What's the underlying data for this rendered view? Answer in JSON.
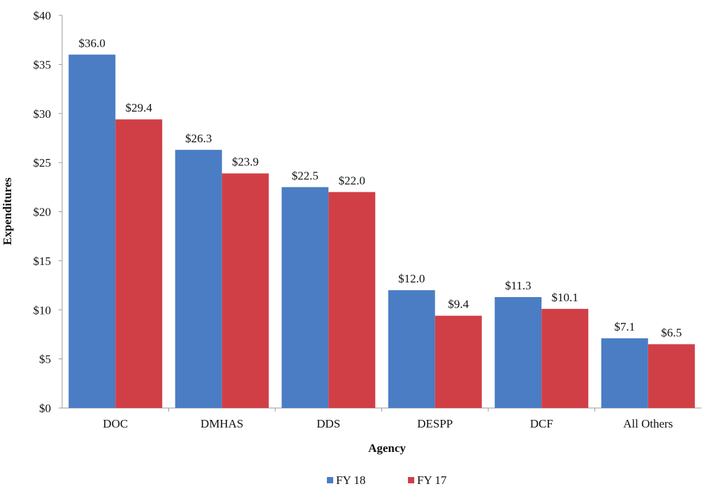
{
  "chart_data": {
    "type": "bar",
    "title": "",
    "xlabel": "Agency",
    "ylabel": "Expenditures",
    "categories": [
      "DOC",
      "DMHAS",
      "DDS",
      "DESPP",
      "DCF",
      "All Others"
    ],
    "series": [
      {
        "name": "FY 18",
        "color": "#4a7dc4",
        "values": [
          36.0,
          26.3,
          22.5,
          12.0,
          11.3,
          7.1
        ],
        "labels": [
          "$36.0",
          "$26.3",
          "$22.5",
          "$12.0",
          "$11.3",
          "$7.1"
        ]
      },
      {
        "name": "FY 17",
        "color": "#d13f46",
        "values": [
          29.4,
          23.9,
          22.0,
          9.4,
          10.1,
          6.5
        ],
        "labels": [
          "$29.4",
          "$23.9",
          "$22.0",
          "$9.4",
          "$10.1",
          "$6.5"
        ]
      }
    ],
    "ylim": [
      0,
      40
    ],
    "yticks": [
      0,
      5,
      10,
      15,
      20,
      25,
      30,
      35,
      40
    ],
    "ytick_labels": [
      "$0",
      "$5",
      "$10",
      "$15",
      "$20",
      "$25",
      "$30",
      "$35",
      "$40"
    ],
    "grid": false,
    "legend_position": "bottom"
  }
}
